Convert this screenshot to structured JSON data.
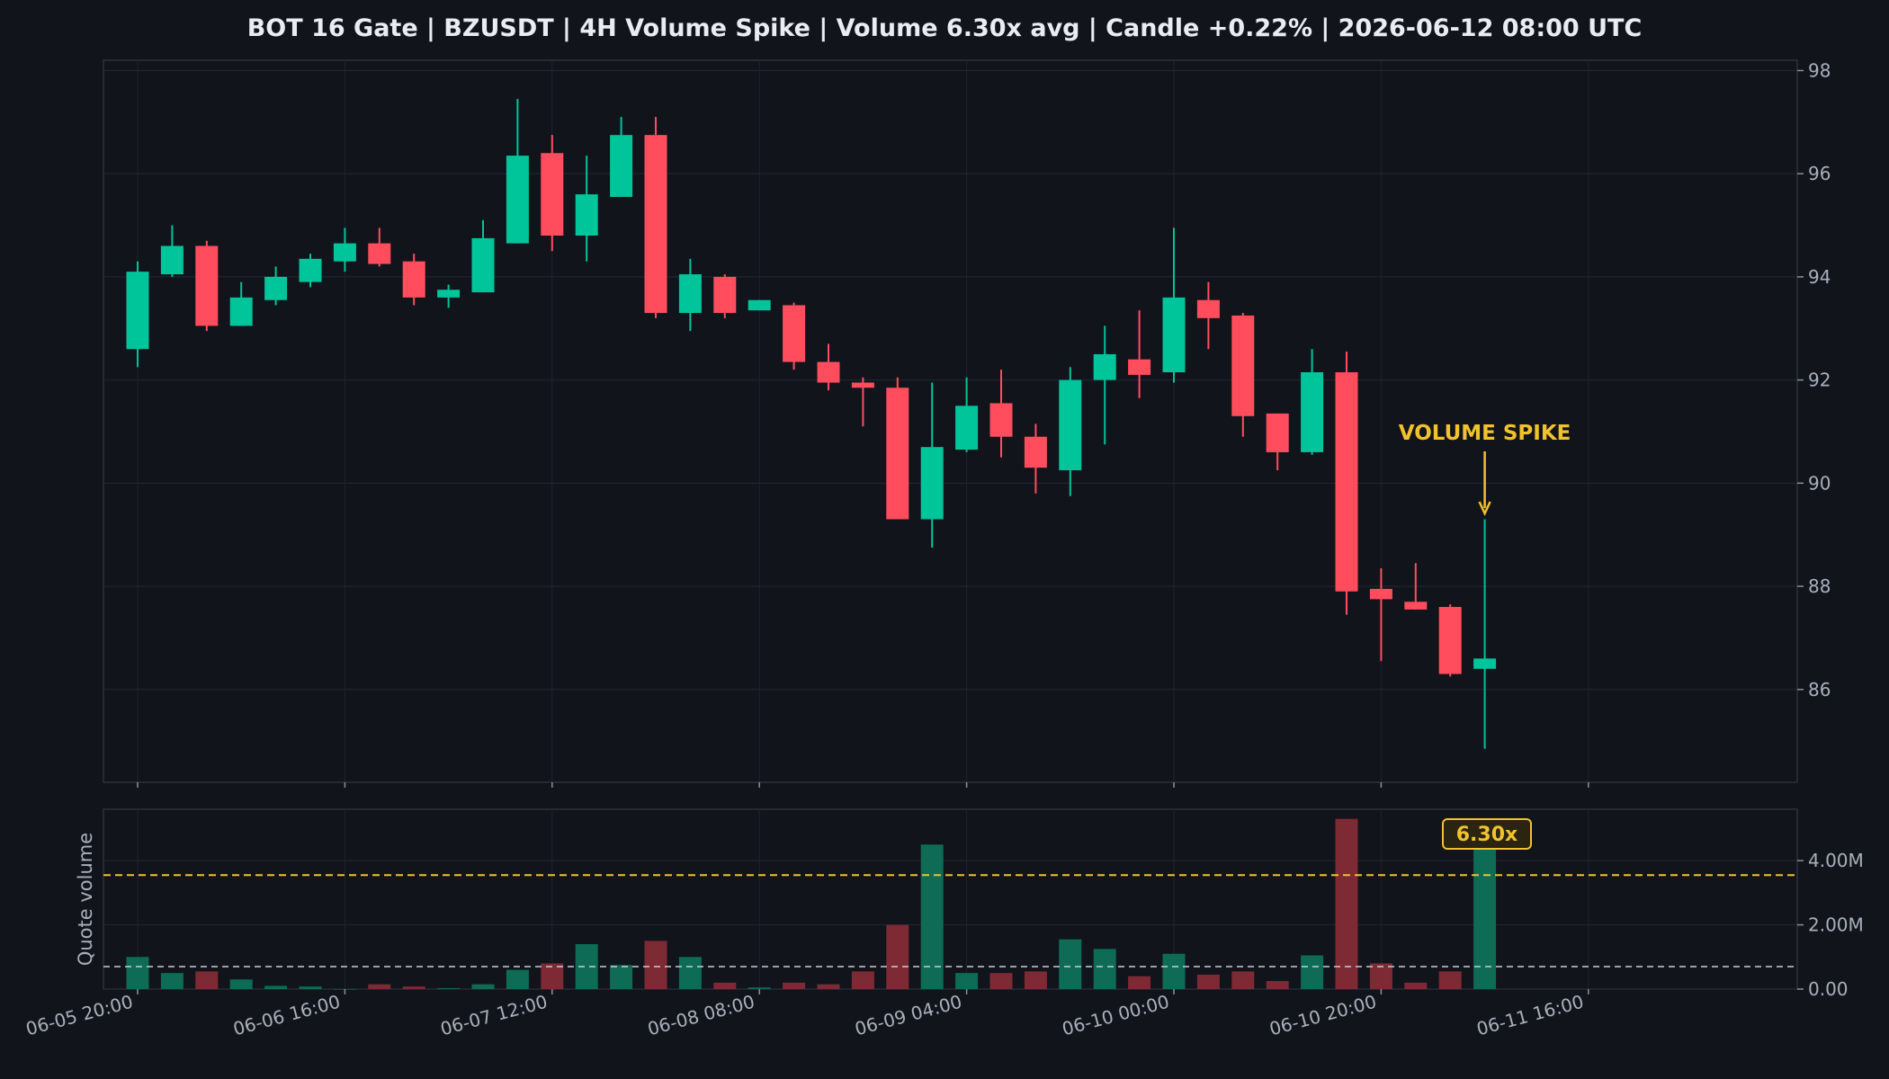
{
  "chart_data": {
    "type": "candlestick",
    "title": "BOT 16 Gate | BZUSDT | 4H Volume Spike | Volume 6.30x avg | Candle +0.22% | 2026-06-12 08:00 UTC",
    "colors": {
      "up": "#00c49a",
      "down": "#ff4d5e",
      "spike": "#f2c12e",
      "avg_line": "#c9cdd6"
    },
    "x_tick_labels": [
      "06-05 20:00",
      "06-06 16:00",
      "06-07 12:00",
      "06-08 08:00",
      "06-09 04:00",
      "06-10 00:00",
      "06-10 20:00",
      "06-11 16:00"
    ],
    "price_axis": {
      "ylim": [
        84.2,
        98.2
      ],
      "ticks": [
        "86",
        "88",
        "90",
        "92",
        "94",
        "96",
        "98"
      ]
    },
    "volume_axis": {
      "ylabel": "Quote volume",
      "ylim": [
        0,
        5.6
      ],
      "ticks": [
        "0.00",
        "2.00M",
        "4.00M"
      ]
    },
    "candles": [
      {
        "o": 92.6,
        "h": 94.3,
        "l": 92.25,
        "c": 94.1,
        "v": 1.0
      },
      {
        "o": 94.05,
        "h": 95.0,
        "l": 94.0,
        "c": 94.6,
        "v": 0.5
      },
      {
        "o": 94.6,
        "h": 94.7,
        "l": 92.95,
        "c": 93.05,
        "v": 0.55
      },
      {
        "o": 93.05,
        "h": 93.9,
        "l": 93.05,
        "c": 93.6,
        "v": 0.3
      },
      {
        "o": 93.55,
        "h": 94.2,
        "l": 93.45,
        "c": 94.0,
        "v": 0.1
      },
      {
        "o": 93.9,
        "h": 94.45,
        "l": 93.8,
        "c": 94.35,
        "v": 0.08
      },
      {
        "o": 94.3,
        "h": 94.95,
        "l": 94.1,
        "c": 94.65,
        "v": 0.0
      },
      {
        "o": 94.65,
        "h": 94.95,
        "l": 94.2,
        "c": 94.25,
        "v": 0.15
      },
      {
        "o": 94.3,
        "h": 94.45,
        "l": 93.45,
        "c": 93.6,
        "v": 0.08
      },
      {
        "o": 93.6,
        "h": 93.85,
        "l": 93.4,
        "c": 93.75,
        "v": 0.03
      },
      {
        "o": 93.7,
        "h": 95.1,
        "l": 93.7,
        "c": 94.75,
        "v": 0.15
      },
      {
        "o": 94.65,
        "h": 97.45,
        "l": 94.65,
        "c": 96.35,
        "v": 0.6
      },
      {
        "o": 96.4,
        "h": 96.75,
        "l": 94.5,
        "c": 94.8,
        "v": 0.8
      },
      {
        "o": 94.8,
        "h": 96.35,
        "l": 94.3,
        "c": 95.6,
        "v": 1.4
      },
      {
        "o": 95.55,
        "h": 97.1,
        "l": 95.55,
        "c": 96.75,
        "v": 0.75
      },
      {
        "o": 96.75,
        "h": 97.1,
        "l": 93.2,
        "c": 93.3,
        "v": 1.5
      },
      {
        "o": 93.3,
        "h": 94.35,
        "l": 92.95,
        "c": 94.05,
        "v": 1.0
      },
      {
        "o": 94.0,
        "h": 94.05,
        "l": 93.2,
        "c": 93.3,
        "v": 0.2
      },
      {
        "o": 93.35,
        "h": 93.55,
        "l": 93.35,
        "c": 93.55,
        "v": 0.05
      },
      {
        "o": 93.45,
        "h": 93.5,
        "l": 92.2,
        "c": 92.35,
        "v": 0.2
      },
      {
        "o": 92.35,
        "h": 92.7,
        "l": 91.8,
        "c": 91.95,
        "v": 0.15
      },
      {
        "o": 91.95,
        "h": 92.05,
        "l": 91.1,
        "c": 91.85,
        "v": 0.55
      },
      {
        "o": 91.85,
        "h": 92.05,
        "l": 89.3,
        "c": 89.3,
        "v": 2.0
      },
      {
        "o": 89.3,
        "h": 91.95,
        "l": 88.75,
        "c": 90.7,
        "v": 4.5
      },
      {
        "o": 90.65,
        "h": 92.05,
        "l": 90.6,
        "c": 91.5,
        "v": 0.5
      },
      {
        "o": 91.55,
        "h": 92.2,
        "l": 90.5,
        "c": 90.9,
        "v": 0.5
      },
      {
        "o": 90.9,
        "h": 91.15,
        "l": 89.8,
        "c": 90.3,
        "v": 0.55
      },
      {
        "o": 90.25,
        "h": 92.25,
        "l": 89.75,
        "c": 92.0,
        "v": 1.55
      },
      {
        "o": 92.0,
        "h": 93.05,
        "l": 90.75,
        "c": 92.5,
        "v": 1.25
      },
      {
        "o": 92.4,
        "h": 93.35,
        "l": 91.65,
        "c": 92.1,
        "v": 0.4
      },
      {
        "o": 92.15,
        "h": 94.95,
        "l": 91.95,
        "c": 93.6,
        "v": 1.1
      },
      {
        "o": 93.55,
        "h": 93.9,
        "l": 92.6,
        "c": 93.2,
        "v": 0.45
      },
      {
        "o": 93.25,
        "h": 93.3,
        "l": 90.9,
        "c": 91.3,
        "v": 0.55
      },
      {
        "o": 91.35,
        "h": 91.35,
        "l": 90.25,
        "c": 90.6,
        "v": 0.25
      },
      {
        "o": 90.6,
        "h": 92.6,
        "l": 90.55,
        "c": 92.15,
        "v": 1.05
      },
      {
        "o": 92.15,
        "h": 92.55,
        "l": 87.45,
        "c": 87.9,
        "v": 5.3
      },
      {
        "o": 87.95,
        "h": 88.35,
        "l": 86.55,
        "c": 87.75,
        "v": 0.8
      },
      {
        "o": 87.7,
        "h": 88.45,
        "l": 87.55,
        "c": 87.55,
        "v": 0.2
      },
      {
        "o": 87.6,
        "h": 87.65,
        "l": 86.25,
        "c": 86.3,
        "v": 0.55
      },
      {
        "o": 86.4,
        "h": 89.3,
        "l": 84.85,
        "c": 86.6,
        "v": 4.45
      }
    ],
    "avg_volume": 0.7,
    "spike_threshold": 3.55,
    "annotations": {
      "spike_text": "VOLUME SPIKE",
      "multiplier_badge": "6.30x"
    }
  }
}
